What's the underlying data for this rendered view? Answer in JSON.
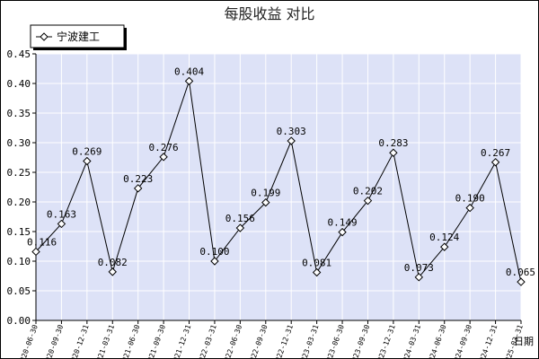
{
  "chart_data": {
    "type": "line",
    "title": "每股收益  对比",
    "xlabel": "日期",
    "ylabel": "",
    "ylim": [
      0,
      0.45
    ],
    "yticks": [
      "0.00",
      "0.05",
      "0.10",
      "0.15",
      "0.20",
      "0.25",
      "0.30",
      "0.35",
      "0.40",
      "0.45"
    ],
    "grid": true,
    "legend_position": "top-left",
    "colors": {
      "line": "#000000",
      "plot_bg": "#dde2f7",
      "grid": "#ffffff"
    },
    "series": [
      {
        "name": "宁波建工",
        "x": [
          "2020-06-30",
          "2020-09-30",
          "2020-12-31",
          "2021-03-31",
          "2021-06-30",
          "2021-09-30",
          "2021-12-31",
          "2022-03-31",
          "2022-06-30",
          "2022-09-30",
          "2022-12-31",
          "2023-03-31",
          "2023-06-30",
          "2023-09-30",
          "2023-12-31",
          "2024-03-31",
          "2024-06-30",
          "2024-09-30",
          "2024-12-31",
          "2025-03-31"
        ],
        "values": [
          0.116,
          0.163,
          0.269,
          0.082,
          0.223,
          0.276,
          0.404,
          0.1,
          0.156,
          0.199,
          0.303,
          0.081,
          0.149,
          0.202,
          0.283,
          0.073,
          0.124,
          0.19,
          0.267,
          0.065
        ],
        "labels": [
          "0.116",
          "0.163",
          "0.269",
          "0.082",
          "0.223",
          "0.276",
          "0.404",
          "0.100",
          "0.156",
          "0.199",
          "0.303",
          "0.081",
          "0.149",
          "0.202",
          "0.283",
          "0.073",
          "0.124",
          "0.190",
          "0.267",
          "0.065"
        ]
      }
    ]
  }
}
